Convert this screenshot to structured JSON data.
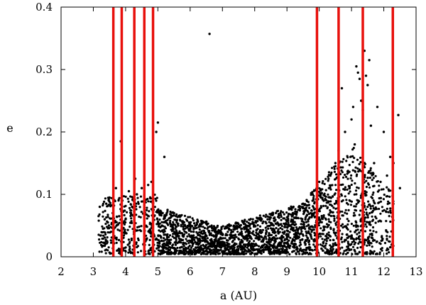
{
  "chart_data": {
    "type": "scatter",
    "title": "",
    "xlabel": "a (AU)",
    "ylabel": "e",
    "xlim": [
      2,
      13
    ],
    "ylim": [
      0,
      0.4
    ],
    "xticks": [
      2,
      3,
      4,
      5,
      6,
      7,
      8,
      9,
      10,
      11,
      12,
      13
    ],
    "yticks": [
      0,
      0.1,
      0.2,
      0.3,
      0.4
    ],
    "ytick_labels": [
      "0",
      "0.1",
      "0.2",
      "0.3",
      "0.4"
    ],
    "grid": false,
    "point_color": "#000000",
    "series": [
      {
        "values": [
          [
            3.2,
            0.08
          ],
          [
            3.3,
            0.045
          ],
          [
            3.35,
            0.06
          ],
          [
            3.4,
            0.085
          ],
          [
            3.45,
            0.055
          ],
          [
            3.5,
            0.095
          ],
          [
            3.55,
            0.04
          ],
          [
            3.6,
            0.07
          ],
          [
            3.7,
            0.11
          ],
          [
            3.8,
            0.065
          ],
          [
            3.85,
            0.185
          ],
          [
            3.9,
            0.09
          ],
          [
            4.0,
            0.06
          ],
          [
            4.1,
            0.105
          ],
          [
            4.2,
            0.08
          ],
          [
            4.3,
            0.125
          ],
          [
            4.35,
            0.1
          ],
          [
            4.4,
            0.085
          ],
          [
            4.5,
            0.11
          ],
          [
            4.6,
            0.09
          ],
          [
            4.7,
            0.115
          ],
          [
            4.8,
            0.12
          ],
          [
            4.95,
            0.2
          ],
          [
            5.0,
            0.215
          ],
          [
            5.1,
            0.07
          ],
          [
            5.2,
            0.16
          ],
          [
            5.3,
            0.075
          ],
          [
            5.5,
            0.07
          ],
          [
            5.7,
            0.065
          ],
          [
            6.0,
            0.045
          ],
          [
            6.3,
            0.05
          ],
          [
            6.6,
            0.357
          ],
          [
            6.8,
            0.04
          ],
          [
            7.0,
            0.035
          ],
          [
            7.3,
            0.04
          ],
          [
            7.6,
            0.045
          ],
          [
            8.0,
            0.05
          ],
          [
            8.4,
            0.06
          ],
          [
            8.8,
            0.07
          ],
          [
            9.2,
            0.08
          ],
          [
            9.5,
            0.085
          ],
          [
            9.8,
            0.1
          ],
          [
            10.0,
            0.12
          ],
          [
            10.3,
            0.11
          ],
          [
            10.5,
            0.15
          ],
          [
            10.6,
            0.17
          ],
          [
            10.7,
            0.27
          ],
          [
            10.8,
            0.2
          ],
          [
            10.9,
            0.135
          ],
          [
            11.0,
            0.22
          ],
          [
            11.05,
            0.24
          ],
          [
            11.1,
            0.18
          ],
          [
            11.15,
            0.305
          ],
          [
            11.2,
            0.295
          ],
          [
            11.25,
            0.285
          ],
          [
            11.3,
            0.25
          ],
          [
            11.35,
            0.235
          ],
          [
            11.4,
            0.33
          ],
          [
            11.45,
            0.29
          ],
          [
            11.5,
            0.275
          ],
          [
            11.55,
            0.315
          ],
          [
            11.6,
            0.21
          ],
          [
            11.7,
            0.15
          ],
          [
            11.8,
            0.24
          ],
          [
            11.9,
            0.12
          ],
          [
            12.0,
            0.2
          ],
          [
            12.1,
            0.13
          ],
          [
            12.2,
            0.16
          ],
          [
            12.3,
            0.15
          ],
          [
            12.45,
            0.227
          ],
          [
            12.5,
            0.11
          ]
        ]
      }
    ],
    "vertical_lines": {
      "color": "#e8100c",
      "x": [
        3.62,
        3.88,
        4.27,
        4.58,
        4.85,
        9.93,
        10.6,
        11.35,
        12.28
      ]
    }
  }
}
